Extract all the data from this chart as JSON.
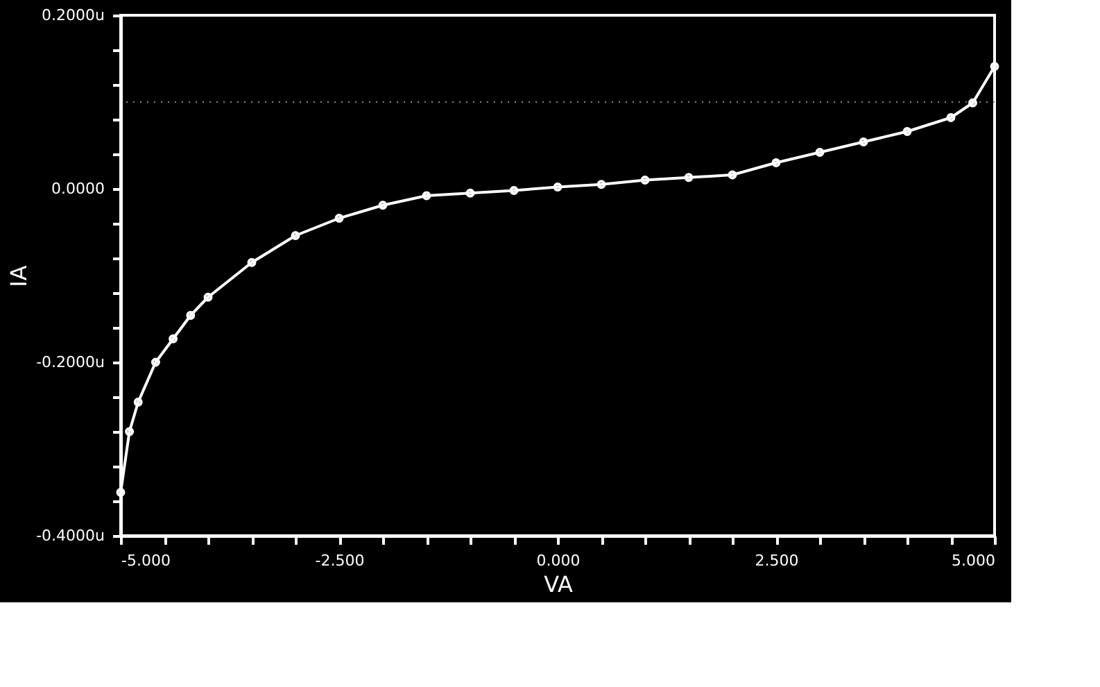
{
  "chart_data": {
    "type": "line",
    "xlabel": "VA",
    "ylabel": "IA",
    "x": [
      -5,
      -4.9,
      -4.8,
      -4.6,
      -4.4,
      -4.2,
      -4.0,
      -3.5,
      -3.0,
      -2.5,
      -2.0,
      -1.5,
      -1.0,
      -0.5,
      0,
      0.5,
      1.0,
      1.5,
      2.0,
      2.5,
      3.0,
      3.5,
      4.0,
      4.5,
      4.75,
      5
    ],
    "series": [
      {
        "color": "#ffffff",
        "values": [
          -0.35,
          -0.28,
          -0.246,
          -0.2,
          -0.173,
          -0.146,
          -0.125,
          -0.085,
          -0.054,
          -0.034,
          -0.019,
          -0.008,
          -0.005,
          -0.002,
          0.002,
          0.005,
          0.01,
          0.013,
          0.016,
          0.03,
          0.042,
          0.054,
          0.066,
          0.082,
          0.099,
          0.141
        ]
      }
    ],
    "xlim": [
      -5,
      5
    ],
    "xticks": [
      {
        "value": -5,
        "label": "-5.000"
      },
      {
        "value": -4.5,
        "label": null
      },
      {
        "value": -4,
        "label": null
      },
      {
        "value": -3.5,
        "label": null
      },
      {
        "value": -3,
        "label": null
      },
      {
        "value": -2.5,
        "label": "-2.500"
      },
      {
        "value": -2,
        "label": null
      },
      {
        "value": -1.5,
        "label": null
      },
      {
        "value": -1,
        "label": null
      },
      {
        "value": -0.5,
        "label": null
      },
      {
        "value": 0,
        "label": "0.000"
      },
      {
        "value": 0.5,
        "label": null
      },
      {
        "value": 1,
        "label": null
      },
      {
        "value": 1.5,
        "label": null
      },
      {
        "value": 2,
        "label": null
      },
      {
        "value": 2.5,
        "label": "2.500"
      },
      {
        "value": 3,
        "label": null
      },
      {
        "value": 3.5,
        "label": null
      },
      {
        "value": 4,
        "label": null
      },
      {
        "value": 4.5,
        "label": null
      },
      {
        "value": 5,
        "label": "5.000"
      }
    ],
    "ylim": [
      -0.4,
      0.2
    ],
    "yticks": [
      {
        "value": -0.4,
        "label": "-0.4000u"
      },
      {
        "value": -0.36,
        "label": null
      },
      {
        "value": -0.32,
        "label": null
      },
      {
        "value": -0.28,
        "label": null
      },
      {
        "value": -0.24,
        "label": null
      },
      {
        "value": -0.2,
        "label": "-0.2000u"
      },
      {
        "value": -0.16,
        "label": null
      },
      {
        "value": -0.12,
        "label": null
      },
      {
        "value": -0.08,
        "label": null
      },
      {
        "value": -0.04,
        "label": null
      },
      {
        "value": 0,
        "label": "0.0000"
      },
      {
        "value": 0.04,
        "label": null
      },
      {
        "value": 0.08,
        "label": null
      },
      {
        "value": 0.12,
        "label": null
      },
      {
        "value": 0.16,
        "label": null
      },
      {
        "value": 0.2,
        "label": "0.2000u"
      }
    ],
    "ref_lines": [
      {
        "axis": "y",
        "value": 0.1,
        "color": "#888888",
        "line_style": "dotted"
      }
    ],
    "marker": "circle",
    "line_style": "solid",
    "grid": false
  }
}
